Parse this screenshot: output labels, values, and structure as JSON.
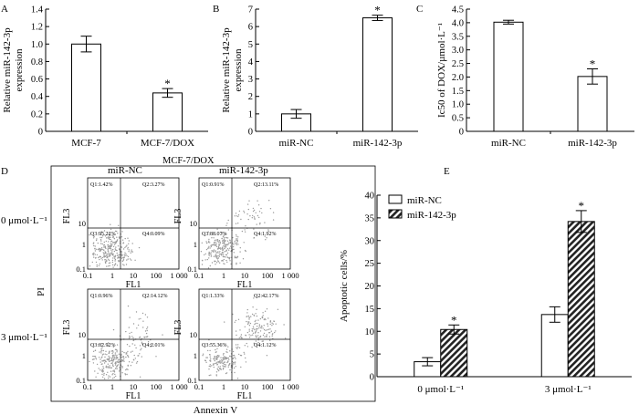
{
  "panel_letters": {
    "a": "A",
    "b": "B",
    "c": "C",
    "d": "D",
    "e": "E"
  },
  "chart_data": [
    {
      "id": "A",
      "type": "bar",
      "categories": [
        "MCF-7",
        "MCF-7/DOX"
      ],
      "values": [
        1.0,
        0.44
      ],
      "errors": [
        0.09,
        0.05
      ],
      "significance": [
        "",
        "*"
      ],
      "ylabel_line1": "Relative miR-142-3p",
      "ylabel_line2": "expression",
      "ylim": [
        0,
        1.4
      ],
      "yticks": [
        0,
        0.2,
        0.4,
        0.6,
        0.8,
        1.0,
        1.2,
        1.4
      ],
      "yticklabels": [
        "0",
        "0.2",
        "0.4",
        "0.6",
        "0.8",
        "1.0",
        "1.2",
        "1.4"
      ]
    },
    {
      "id": "B",
      "type": "bar",
      "categories": [
        "miR-NC",
        "miR-142-3p"
      ],
      "values": [
        1.0,
        6.5
      ],
      "errors": [
        0.25,
        0.15
      ],
      "significance": [
        "",
        "*"
      ],
      "ylabel_line1": "Relative miR-142-3p",
      "ylabel_line2": "expression",
      "ylim": [
        0,
        7
      ],
      "yticks": [
        0,
        1,
        2,
        3,
        4,
        5,
        6,
        7
      ],
      "yticklabels": [
        "0",
        "1",
        "2",
        "3",
        "4",
        "5",
        "6",
        "7"
      ]
    },
    {
      "id": "C",
      "type": "bar",
      "categories": [
        "miR-NC",
        "miR-142-3p"
      ],
      "values": [
        4.02,
        2.02
      ],
      "errors": [
        0.07,
        0.28
      ],
      "significance": [
        "",
        "*"
      ],
      "ylabel": "Ic50 of DOX/µmol·L⁻¹",
      "ylim": [
        0,
        4.5
      ],
      "yticks": [
        0,
        0.5,
        1.0,
        1.5,
        2.0,
        2.5,
        3.0,
        3.5,
        4.0,
        4.5
      ],
      "yticklabels": [
        "0",
        "0.5",
        "1.0",
        "1.5",
        "2.0",
        "2.5",
        "3.0",
        "3.5",
        "4.0",
        "4.5"
      ]
    },
    {
      "id": "E",
      "type": "bar",
      "categories": [
        "0 μmol·L⁻¹",
        "3 μmol·L⁻¹"
      ],
      "series": [
        {
          "name": "miR-NC",
          "values": [
            3.3,
            13.7
          ],
          "errors": [
            0.9,
            1.7
          ],
          "significance": [
            "",
            ""
          ]
        },
        {
          "name": "miR-142-3p",
          "values": [
            10.4,
            34.2
          ],
          "errors": [
            1.0,
            2.4
          ],
          "significance": [
            "*",
            "*"
          ]
        }
      ],
      "ylabel": "Apoptotic cells/%",
      "ylim": [
        0,
        40
      ],
      "yticks": [
        0,
        5,
        10,
        15,
        20,
        25,
        30,
        35,
        40
      ],
      "yticklabels": [
        "0",
        "5",
        "10",
        "15",
        "20",
        "25",
        "30",
        "35",
        "40"
      ],
      "legend_position": "top-left"
    }
  ],
  "flow": {
    "title": "MCF-7/DOX",
    "col_labels": [
      "miR-NC",
      "miR-142-3p"
    ],
    "row_labels": [
      "0 μmol·L⁻¹",
      "3 μmol·L⁻¹"
    ],
    "y_axis_title": "PI",
    "x_axis_title": "Annexin V",
    "plot_xlabel": "FL1",
    "plot_ylabel": "FL3",
    "ticks": [
      "0.1",
      "1",
      "10",
      "100",
      "1 000"
    ],
    "plots": [
      {
        "q1": "Q1:1.42%",
        "q2": "Q2:3.27%",
        "q3": "Q3:95.22%",
        "q4": "Q4:0.09%"
      },
      {
        "q1": "Q1:0.91%",
        "q2": "Q2:13.11%",
        "q3": "Q3:88.07%",
        "q4": "Q4:1.92%"
      },
      {
        "q1": "Q1:0.96%",
        "q2": "Q2:14.12%",
        "q3": "Q3:82.92%",
        "q4": "Q4:2.01%"
      },
      {
        "q1": "Q1:1.33%",
        "q2": "Q2:42.17%",
        "q3": "Q3:55.36%",
        "q4": "Q4:1.12%"
      }
    ]
  }
}
